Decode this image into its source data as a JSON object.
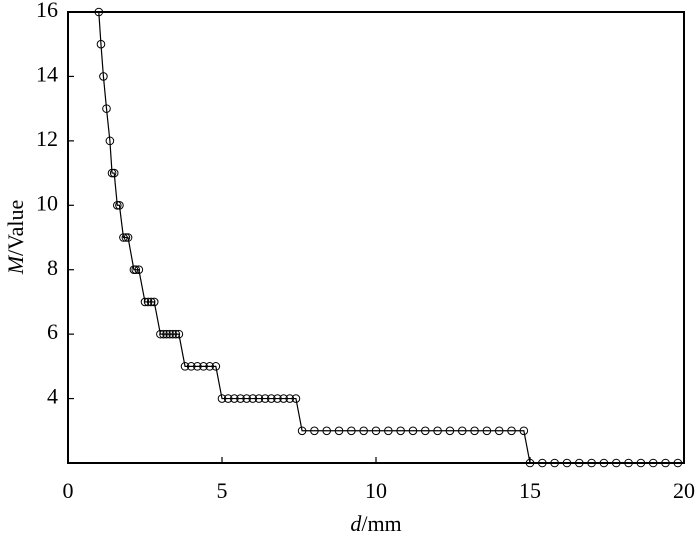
{
  "chart_data": {
    "type": "line",
    "x_label": {
      "var": "d",
      "unit": "/mm"
    },
    "y_label": {
      "var": "M",
      "unit": "/Value"
    },
    "xlim": [
      0,
      20
    ],
    "ylim": [
      2,
      16
    ],
    "xticks": [
      0,
      5,
      10,
      15,
      20
    ],
    "yticks": [
      4,
      6,
      8,
      10,
      12,
      14,
      16
    ],
    "grid": false,
    "color": "#000000",
    "marker": "circle",
    "x": [
      1.0,
      1.07,
      1.15,
      1.25,
      1.36,
      1.43,
      1.5,
      1.6,
      1.67,
      1.8,
      1.88,
      1.95,
      2.14,
      2.2,
      2.3,
      2.5,
      2.6,
      2.7,
      2.8,
      3.0,
      3.1,
      3.2,
      3.3,
      3.4,
      3.5,
      3.6,
      3.8,
      4.0,
      4.2,
      4.4,
      4.6,
      4.8,
      5.0,
      5.2,
      5.4,
      5.6,
      5.8,
      6.0,
      6.2,
      6.4,
      6.6,
      6.8,
      7.0,
      7.2,
      7.4,
      7.6,
      8.0,
      8.4,
      8.8,
      9.2,
      9.6,
      10.0,
      10.4,
      10.8,
      11.2,
      11.6,
      12.0,
      12.4,
      12.8,
      13.2,
      13.6,
      14.0,
      14.4,
      14.8,
      15.0,
      15.4,
      15.8,
      16.2,
      16.6,
      17.0,
      17.4,
      17.8,
      18.2,
      18.6,
      19.0,
      19.4,
      19.8
    ],
    "values": [
      16,
      15,
      14,
      13,
      12,
      11,
      11,
      10,
      10,
      9,
      9,
      9,
      8,
      8,
      8,
      7,
      7,
      7,
      7,
      6,
      6,
      6,
      6,
      6,
      6,
      6,
      5,
      5,
      5,
      5,
      5,
      5,
      4,
      4,
      4,
      4,
      4,
      4,
      4,
      4,
      4,
      4,
      4,
      4,
      4,
      3,
      3,
      3,
      3,
      3,
      3,
      3,
      3,
      3,
      3,
      3,
      3,
      3,
      3,
      3,
      3,
      3,
      3,
      3,
      2,
      2,
      2,
      2,
      2,
      2,
      2,
      2,
      2,
      2,
      2,
      2,
      2
    ]
  }
}
